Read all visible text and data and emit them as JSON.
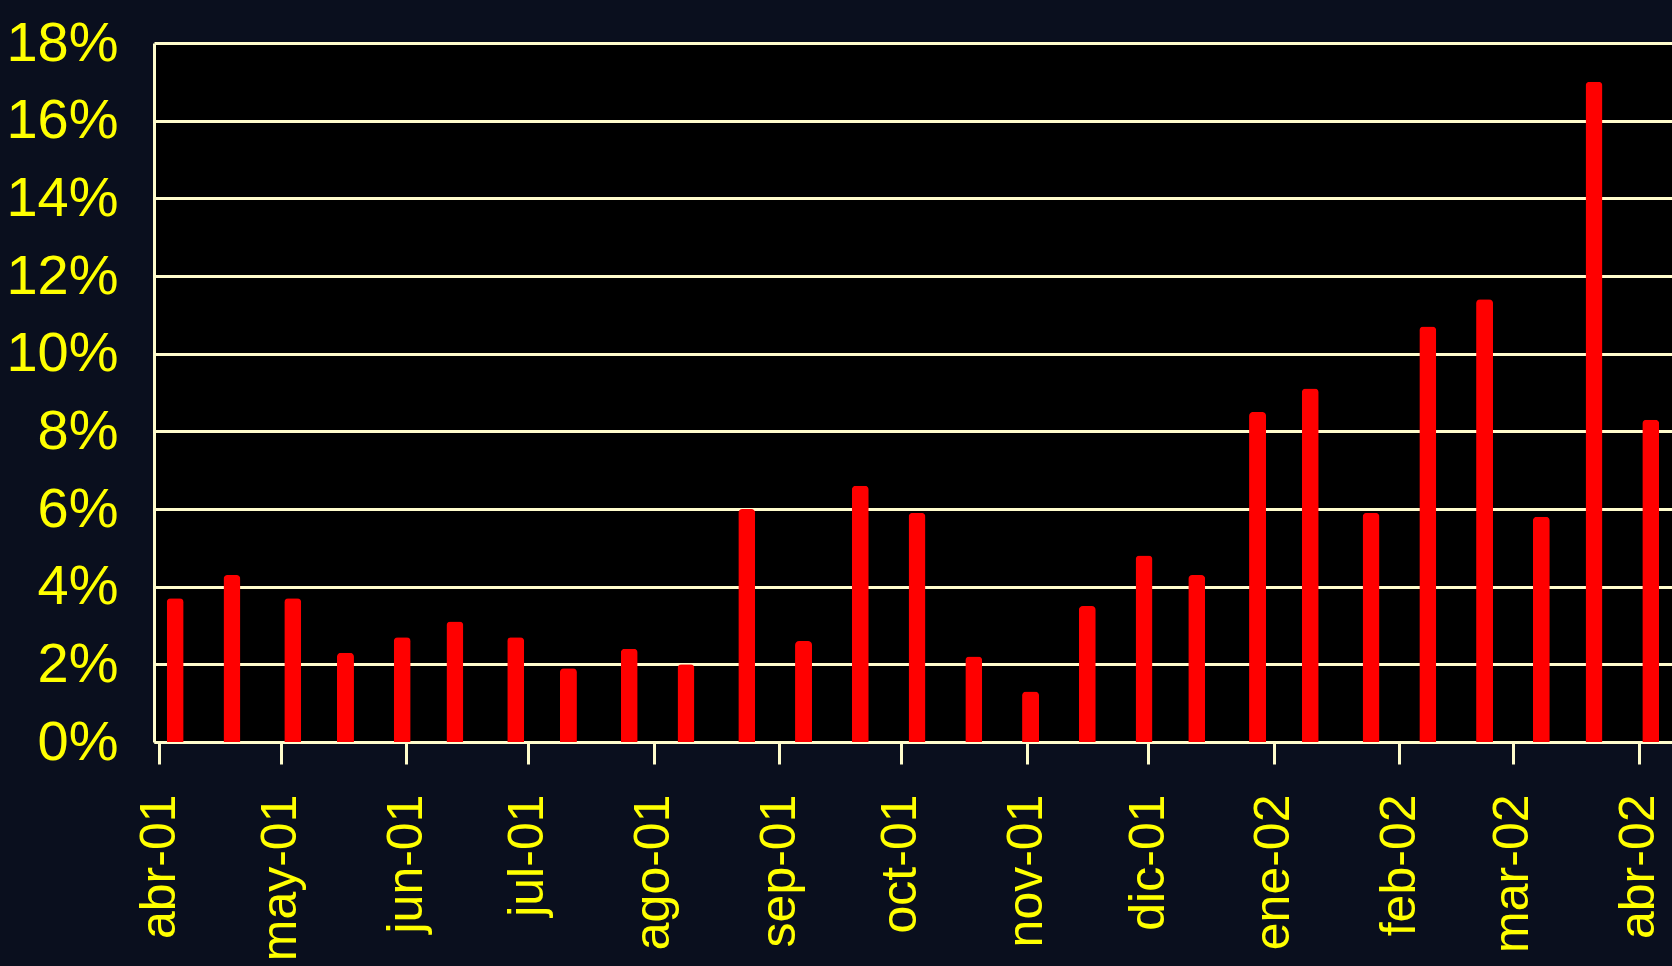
{
  "chart_data": {
    "type": "bar",
    "x": [
      "2001-04-05",
      "2001-04-19",
      "2001-05-04",
      "2001-05-17",
      "2001-05-31",
      "2001-06-13",
      "2001-06-28",
      "2001-07-11",
      "2001-07-26",
      "2001-08-09",
      "2001-08-24",
      "2001-09-07",
      "2001-09-21",
      "2001-10-05",
      "2001-10-19",
      "2001-11-02",
      "2001-11-16",
      "2001-11-30",
      "2001-12-13",
      "2001-12-28",
      "2002-01-10",
      "2002-01-25",
      "2002-02-08",
      "2002-02-22",
      "2002-03-08",
      "2002-03-21",
      "2002-04-04"
    ],
    "values": [
      3.7,
      4.3,
      3.7,
      2.3,
      2.7,
      3.1,
      2.7,
      1.9,
      2.4,
      2.0,
      6.0,
      2.6,
      6.6,
      5.9,
      2.2,
      1.3,
      3.5,
      4.8,
      4.3,
      8.5,
      9.1,
      5.9,
      10.7,
      11.4,
      5.8,
      17.0,
      8.3
    ],
    "color": "#ff0000",
    "xlim": [
      "2001-04-01",
      "2002-04-08"
    ],
    "xticks": [
      {
        "value": "2001-04-01",
        "label": "abr-01"
      },
      {
        "value": "2001-05-01",
        "label": "may-01"
      },
      {
        "value": "2001-06-01",
        "label": "jun-01"
      },
      {
        "value": "2001-07-01",
        "label": "jul-01"
      },
      {
        "value": "2001-08-01",
        "label": "ago-01"
      },
      {
        "value": "2001-09-01",
        "label": "sep-01"
      },
      {
        "value": "2001-10-01",
        "label": "oct-01"
      },
      {
        "value": "2001-11-01",
        "label": "nov-01"
      },
      {
        "value": "2001-12-01",
        "label": "dic-01"
      },
      {
        "value": "2002-01-01",
        "label": "ene-02"
      },
      {
        "value": "2002-02-01",
        "label": "feb-02"
      },
      {
        "value": "2002-03-01",
        "label": "mar-02"
      },
      {
        "value": "2002-04-01",
        "label": "abr-02"
      }
    ],
    "ylim": [
      0,
      18
    ],
    "yticks": [
      {
        "value": 0,
        "label": "0%"
      },
      {
        "value": 2,
        "label": "2%"
      },
      {
        "value": 4,
        "label": "4%"
      },
      {
        "value": 6,
        "label": "6%"
      },
      {
        "value": 8,
        "label": "8%"
      },
      {
        "value": 10,
        "label": "10%"
      },
      {
        "value": 12,
        "label": "12%"
      },
      {
        "value": 14,
        "label": "14%"
      },
      {
        "value": 16,
        "label": "16%"
      },
      {
        "value": 18,
        "label": "18%"
      }
    ],
    "grid": "y"
  }
}
